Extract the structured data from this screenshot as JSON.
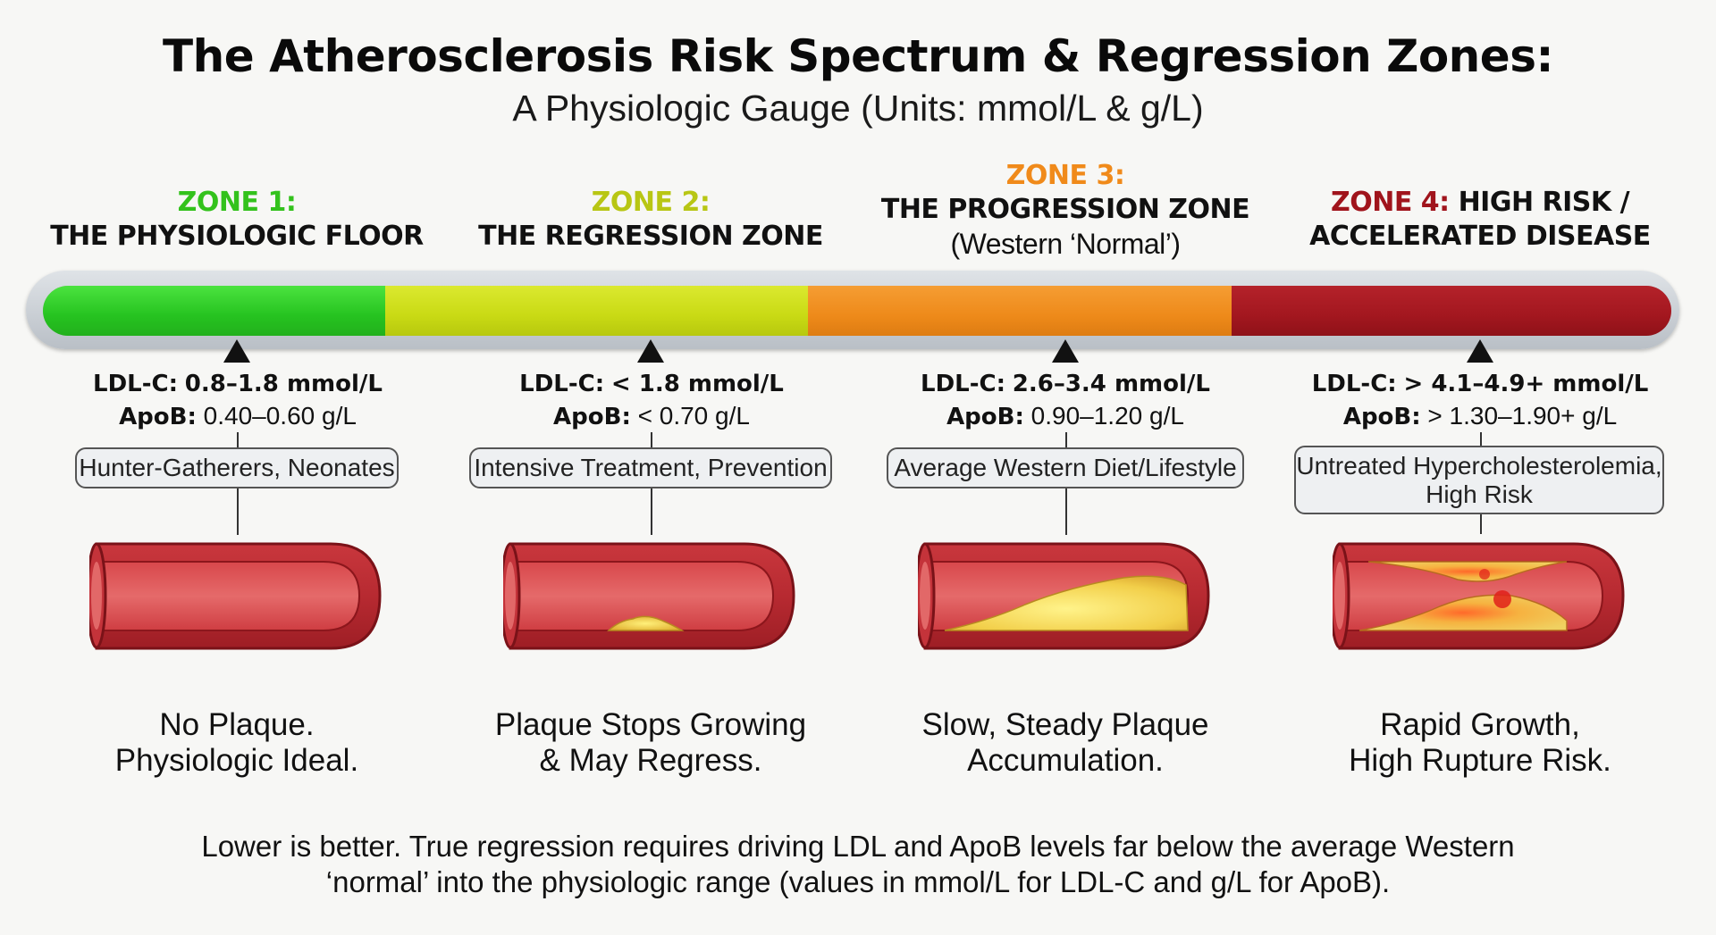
{
  "header": {
    "title": "The Atherosclerosis Risk Spectrum & Regression Zones:",
    "subtitle": "A Physiologic Gauge (Units: mmol/L & g/L)"
  },
  "colors": {
    "zone1": "#2fd12a",
    "zone2": "#cfdf1c",
    "zone3": "#f0901f",
    "zone4": "#a3171f",
    "zone1_label": "#33c21c",
    "zone2_label": "#b8c614",
    "zone3_label": "#f08a1a",
    "zone4_label": "#a0141c"
  },
  "zones": [
    {
      "label": "ZONE 1:",
      "name": "THE PHYSIOLOGIC FLOOR",
      "ldl_key": "LDL-C:",
      "ldl_value": "0.8–1.8 mmol/L",
      "apob_key": "ApoB:",
      "apob_value": "0.40–0.60 g/L",
      "population": "Hunter-Gatherers, Neonates",
      "outcome_line1": "No Plaque.",
      "outcome_line2": "Physiologic Ideal.",
      "artery_icon": "clear-artery-icon"
    },
    {
      "label": "ZONE 2:",
      "name": "THE REGRESSION ZONE",
      "ldl_key": "LDL-C:",
      "ldl_value": "< 1.8 mmol/L",
      "apob_key": "ApoB:",
      "apob_value": "< 0.70 g/L",
      "population": "Intensive Treatment, Prevention",
      "outcome_line1": "Plaque Stops Growing",
      "outcome_line2": "& May Regress.",
      "artery_icon": "small-plaque-artery-icon"
    },
    {
      "label": "ZONE 3:",
      "name": "THE PROGRESSION ZONE",
      "sub": "(Western ‘Normal’)",
      "ldl_key": "LDL-C:",
      "ldl_value": "2.6–3.4 mmol/L",
      "apob_key": "ApoB:",
      "apob_value": "0.90–1.20 g/L",
      "population": "Average Western Diet/Lifestyle",
      "outcome_line1": "Slow, Steady Plaque",
      "outcome_line2": "Accumulation.",
      "artery_icon": "moderate-plaque-artery-icon"
    },
    {
      "label": "ZONE 4:",
      "name_a": "HIGH RISK /",
      "name_b": "ACCELERATED DISEASE",
      "ldl_key": "LDL-C:",
      "ldl_value": "> 4.1–4.9+ mmol/L",
      "apob_key": "ApoB:",
      "apob_value": "> 1.30–1.90+ g/L",
      "population_line1": "Untreated Hypercholesterolemia,",
      "population_line2": "High Risk",
      "outcome_line1": "Rapid Growth,",
      "outcome_line2": "High Rupture Risk.",
      "artery_icon": "ruptured-plaque-artery-icon"
    }
  ],
  "footer": {
    "line1": "Lower is better. True regression requires driving LDL and ApoB levels far below the average Western",
    "line2": "‘normal’ into the physiologic range (values in mmol/L for LDL-C and g/L for ApoB)."
  }
}
